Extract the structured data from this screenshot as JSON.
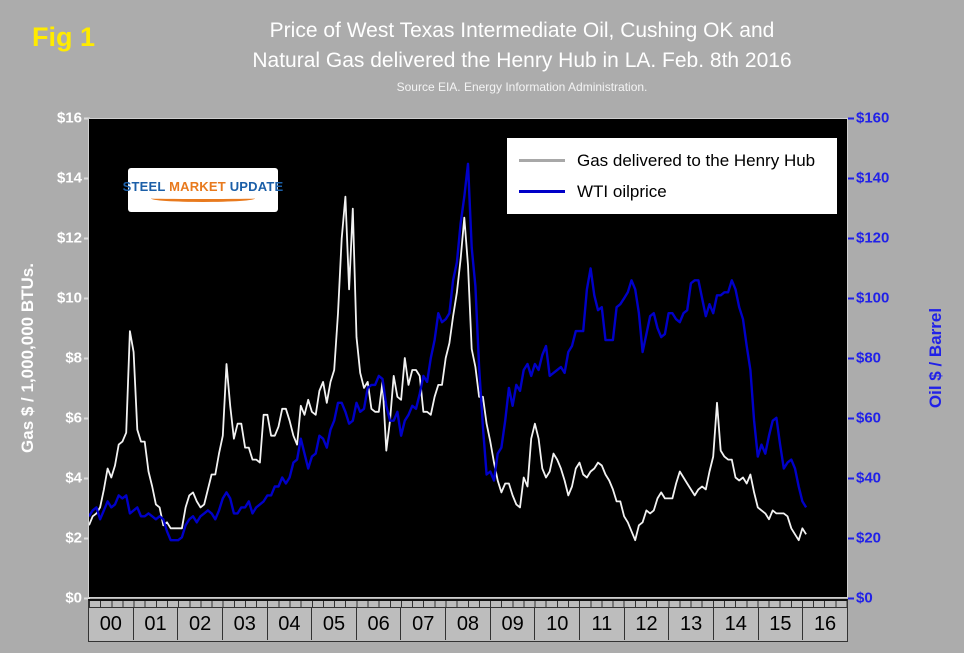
{
  "fig_label": "Fig 1",
  "title": {
    "line1": "Price of West Texas Intermediate Oil, Cushing OK and",
    "line2": "Natural Gas delivered the Henry Hub in LA. Feb. 8th 2016",
    "subtitle": "Source EIA. Energy Information Administration."
  },
  "logo": {
    "parts": [
      "STEEL",
      "MARKET",
      "UPDATE"
    ]
  },
  "legend": {
    "items": [
      {
        "label": "Gas delivered to the Henry Hub",
        "swatch_color": "#a8a8a8"
      },
      {
        "label": "WTI oilprice",
        "swatch_color": "#0000c8"
      }
    ]
  },
  "axes": {
    "left": {
      "title": "Gas $ / 1,000,000 BTUs.",
      "color": "#ffffff",
      "ticks": [
        "$16",
        "$14",
        "$12",
        "$10",
        "$8",
        "$6",
        "$4",
        "$2",
        "$0"
      ]
    },
    "right": {
      "title": "Oil $ / Barrel",
      "color": "#2121e8",
      "ticks": [
        "$160",
        "$140",
        "$120",
        "$100",
        "$80",
        "$60",
        "$40",
        "$20",
        "$0"
      ]
    },
    "x": {
      "labels": [
        "00",
        "01",
        "02",
        "03",
        "04",
        "05",
        "06",
        "07",
        "08",
        "09",
        "10",
        "11",
        "12",
        "13",
        "14",
        "15",
        "16"
      ]
    }
  },
  "chart_data": {
    "type": "line",
    "title": "Price of West Texas Intermediate Oil, Cushing OK and Natural Gas delivered the Henry Hub in LA. Feb. 8th 2016",
    "subtitle": "Source EIA. Energy Information Administration.",
    "grid": false,
    "legend_position": "top-right-inside",
    "plot_background": "#000000",
    "x_unit": "year (monthly points, Jan 2000 - Feb 2016)",
    "x_range": [
      2000,
      2017
    ],
    "points_per_year": 12,
    "x_tick_labels": [
      "00",
      "01",
      "02",
      "03",
      "04",
      "05",
      "06",
      "07",
      "08",
      "09",
      "10",
      "11",
      "12",
      "13",
      "14",
      "15",
      "16"
    ],
    "left_ylim": [
      0,
      16
    ],
    "right_ylim": [
      0,
      160
    ],
    "left_axis_label": "Gas $ / 1,000,000 BTUs.",
    "right_axis_label": "Oil $ / Barrel",
    "series": [
      {
        "name": "Gas delivered to the Henry Hub",
        "axis": "left",
        "unit": "USD per 1,000,000 BTUs",
        "color": "#f2f2f2",
        "values": [
          2.4,
          2.7,
          2.8,
          3.0,
          3.6,
          4.3,
          4.0,
          4.4,
          5.1,
          5.2,
          5.5,
          8.9,
          8.2,
          5.6,
          5.2,
          5.2,
          4.2,
          3.7,
          3.1,
          3.0,
          2.4,
          2.5,
          2.3,
          2.3,
          2.3,
          2.3,
          3.0,
          3.4,
          3.5,
          3.2,
          3.0,
          3.1,
          3.6,
          4.1,
          4.1,
          4.8,
          5.4,
          7.8,
          6.4,
          5.3,
          5.8,
          5.8,
          5.0,
          5.0,
          4.6,
          4.6,
          4.5,
          6.1,
          6.1,
          5.4,
          5.4,
          5.7,
          6.3,
          6.3,
          5.9,
          5.4,
          5.1,
          6.4,
          6.1,
          6.6,
          6.2,
          6.1,
          6.9,
          7.2,
          6.5,
          7.2,
          7.6,
          9.5,
          12.0,
          13.4,
          10.3,
          13.0,
          8.7,
          7.5,
          7.0,
          7.2,
          6.3,
          6.2,
          6.2,
          7.2,
          4.9,
          5.9,
          7.4,
          6.7,
          6.6,
          8.0,
          7.1,
          7.6,
          7.6,
          7.4,
          6.2,
          6.2,
          6.1,
          6.7,
          7.1,
          7.1,
          8.0,
          8.5,
          9.4,
          10.2,
          11.3,
          12.7,
          11.1,
          8.3,
          7.7,
          6.7,
          6.7,
          5.8,
          5.2,
          4.5,
          3.9,
          3.5,
          3.8,
          3.8,
          3.4,
          3.1,
          3.0,
          4.0,
          3.7,
          5.3,
          5.8,
          5.3,
          4.3,
          4.0,
          4.2,
          4.8,
          4.6,
          4.3,
          3.9,
          3.4,
          3.7,
          4.3,
          4.5,
          4.1,
          4.0,
          4.2,
          4.3,
          4.5,
          4.4,
          4.1,
          3.9,
          3.6,
          3.2,
          3.2,
          2.7,
          2.5,
          2.2,
          1.9,
          2.4,
          2.5,
          2.9,
          2.8,
          2.9,
          3.3,
          3.5,
          3.3,
          3.3,
          3.3,
          3.8,
          4.2,
          4.0,
          3.8,
          3.6,
          3.4,
          3.6,
          3.7,
          3.6,
          4.2,
          4.7,
          6.5,
          4.9,
          4.7,
          4.6,
          4.6,
          4.0,
          3.9,
          4.0,
          3.8,
          4.1,
          3.5,
          3.0,
          2.9,
          2.8,
          2.6,
          2.9,
          2.8,
          2.8,
          2.8,
          2.7,
          2.3,
          2.1,
          1.9,
          2.3,
          2.1
        ]
      },
      {
        "name": "WTI oilprice",
        "axis": "right",
        "unit": "USD per barrel",
        "color": "#0000c8",
        "values": [
          27,
          29,
          30,
          26,
          29,
          32,
          30,
          31,
          34,
          33,
          34,
          28,
          29,
          30,
          27,
          27,
          28,
          27,
          26,
          27,
          26,
          22,
          19,
          19,
          19,
          20,
          24,
          26,
          27,
          25,
          27,
          28,
          29,
          28,
          26,
          29,
          33,
          35,
          33,
          28,
          28,
          30,
          30,
          32,
          28,
          30,
          31,
          32,
          34,
          34,
          37,
          37,
          40,
          38,
          40,
          45,
          46,
          53,
          48,
          43,
          47,
          48,
          54,
          53,
          50,
          56,
          59,
          65,
          65,
          62,
          58,
          59,
          65,
          62,
          63,
          70,
          71,
          71,
          74,
          73,
          64,
          59,
          59,
          62,
          54,
          59,
          61,
          64,
          63,
          68,
          74,
          72,
          80,
          86,
          95,
          92,
          93,
          95,
          106,
          112,
          125,
          134,
          145,
          117,
          104,
          77,
          57,
          41,
          42,
          39,
          48,
          50,
          59,
          70,
          64,
          71,
          69,
          76,
          78,
          74,
          78,
          76,
          81,
          84,
          74,
          75,
          76,
          77,
          75,
          82,
          84,
          89,
          89,
          89,
          103,
          110,
          101,
          96,
          97,
          86,
          86,
          86,
          97,
          98,
          100,
          102,
          106,
          103,
          95,
          82,
          88,
          94,
          95,
          90,
          87,
          88,
          95,
          95,
          93,
          92,
          95,
          96,
          105,
          106,
          106,
          100,
          94,
          98,
          95,
          101,
          101,
          102,
          102,
          106,
          103,
          97,
          93,
          84,
          76,
          59,
          47,
          51,
          48,
          54,
          59,
          60,
          51,
          43,
          45,
          46,
          43,
          37,
          32,
          30
        ]
      }
    ]
  }
}
